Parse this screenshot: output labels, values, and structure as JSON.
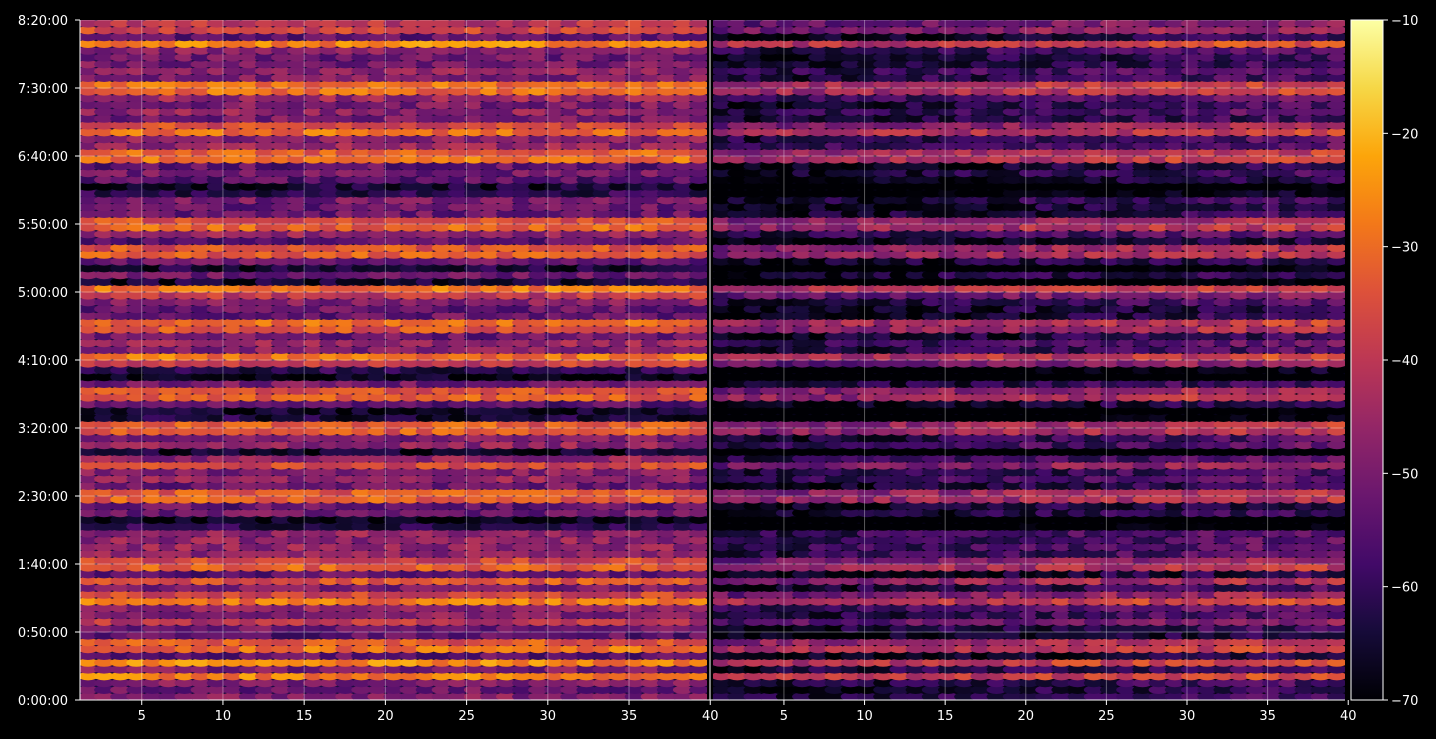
{
  "chart_data": {
    "type": "heatmap",
    "panels": [
      {
        "name": "",
        "xlim": [
          1.2,
          39.8
        ],
        "xticks": [
          5,
          10,
          15,
          20,
          25,
          30,
          35,
          40
        ],
        "x_tick_labels": [
          "5",
          "10",
          "15",
          "20",
          "25",
          "30",
          "35",
          "40"
        ]
      },
      {
        "name": "",
        "xlim": [
          0.6,
          39.8
        ],
        "xticks": [
          5,
          10,
          15,
          20,
          25,
          30,
          35,
          40
        ],
        "x_tick_labels": [
          "5",
          "10",
          "15",
          "20",
          "25",
          "30",
          "35",
          "40"
        ]
      }
    ],
    "x_columns": 39,
    "y_time_rows": 100,
    "ylim_seconds": [
      0,
      30000
    ],
    "yticks_seconds": [
      0,
      3000,
      6000,
      9000,
      12000,
      15000,
      18000,
      21000,
      24000,
      27000,
      30000
    ],
    "ytick_labels": [
      "0:00:00",
      "0:50:00",
      "1:40:00",
      "2:30:00",
      "3:20:00",
      "4:10:00",
      "5:00:00",
      "5:50:00",
      "6:40:00",
      "7:30:00",
      "8:20:00"
    ],
    "colorbar": {
      "colormap": "inferno",
      "vmin": -70,
      "vmax": -10,
      "ticks": [
        -70,
        -60,
        -50,
        -40,
        -30,
        -20,
        -10
      ],
      "tick_labels": [
        "−70",
        "−60",
        "−50",
        "−40",
        "−30",
        "−20",
        "−10"
      ]
    },
    "grid": true,
    "background": "#000000",
    "text_color": "#ffffff",
    "bright_band_seconds": [
      1050,
      1650,
      2400,
      3450,
      4500,
      5250,
      6000,
      9000,
      10500,
      12000,
      13500,
      15000,
      16500,
      18000,
      19800,
      21000,
      24000,
      25200,
      27000,
      29000,
      29700
    ],
    "dark_band_seconds": [
      18500,
      19000,
      12600,
      10800,
      7800,
      14400,
      22500
    ],
    "second_panel_darkening_db": -16
  }
}
